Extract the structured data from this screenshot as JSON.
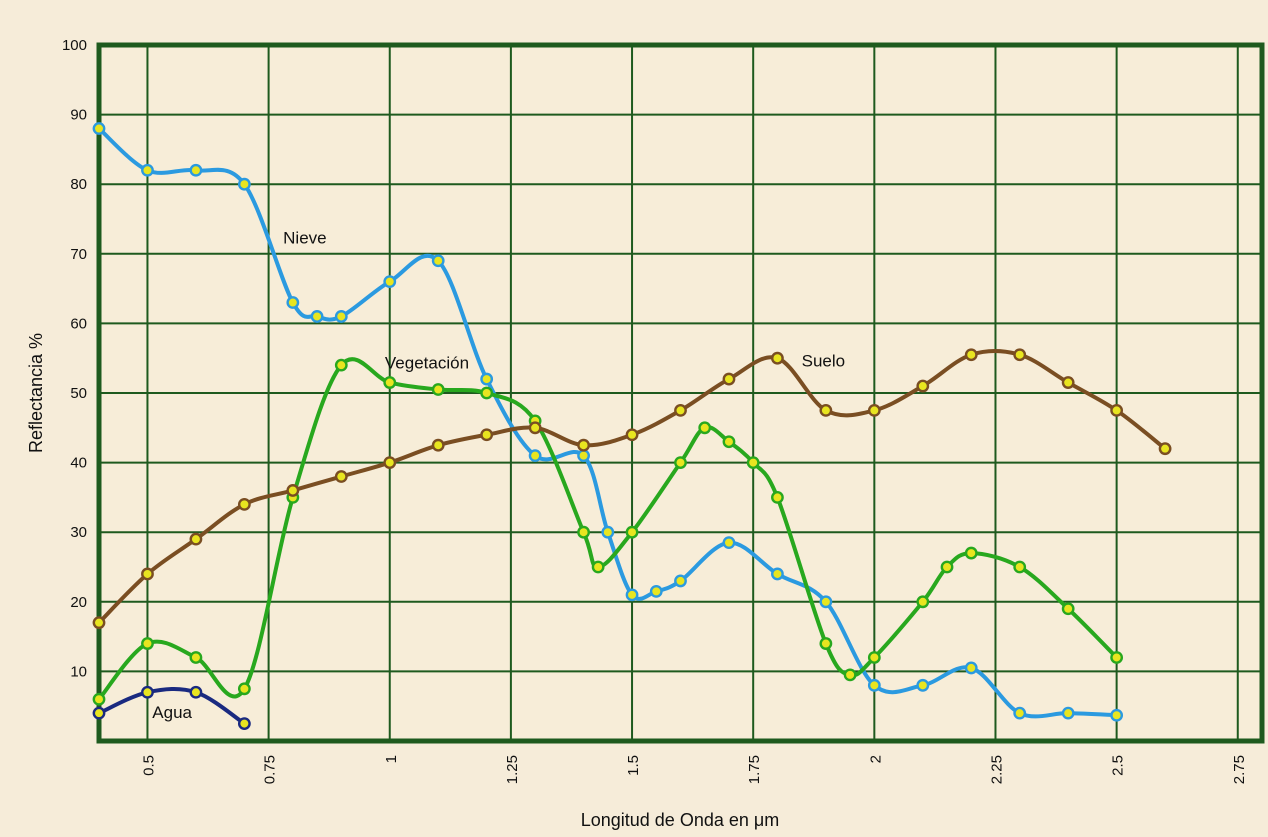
{
  "chart_data": {
    "type": "line",
    "title": "",
    "xlabel": "Longitud de Onda en μm",
    "ylabel": "Reflectancia %",
    "xlim": [
      0.4,
      2.8
    ],
    "ylim": [
      0,
      100
    ],
    "x_ticks": [
      "0.5",
      "0.75",
      "1",
      "1.25",
      "1.5",
      "1.75",
      "2",
      "2.25",
      "2.5",
      "2.75"
    ],
    "y_ticks": [
      "10",
      "20",
      "30",
      "40",
      "50",
      "60",
      "70",
      "80",
      "90",
      "100"
    ],
    "grid": true,
    "legend": "none (inline series labels)",
    "colors": {
      "background": "#f6ecd9",
      "plot_background": "#f7edd8",
      "grid": "#1e5a1e",
      "marker_fill": "#e8e520"
    },
    "series": [
      {
        "name": "Nieve",
        "color": "#2b9ae0",
        "x": [
          0.4,
          0.5,
          0.6,
          0.7,
          0.8,
          0.85,
          0.9,
          1.0,
          1.1,
          1.2,
          1.3,
          1.4,
          1.45,
          1.5,
          1.55,
          1.6,
          1.7,
          1.8,
          1.9,
          2.0,
          2.1,
          2.2,
          2.3,
          2.4,
          2.5
        ],
        "y": [
          88,
          82,
          82,
          80,
          63,
          61,
          61,
          66,
          69,
          52,
          41,
          41,
          30,
          21,
          21.5,
          23,
          28.5,
          24,
          20,
          8,
          8,
          10.5,
          4,
          4,
          3.7
        ]
      },
      {
        "name": "Vegetación",
        "color": "#28a81e",
        "x": [
          0.4,
          0.5,
          0.6,
          0.7,
          0.8,
          0.9,
          1.0,
          1.1,
          1.2,
          1.3,
          1.4,
          1.43,
          1.5,
          1.6,
          1.65,
          1.7,
          1.75,
          1.8,
          1.9,
          1.95,
          2.0,
          2.1,
          2.15,
          2.2,
          2.3,
          2.4,
          2.5
        ],
        "y": [
          6,
          14,
          12,
          7.5,
          35,
          54,
          51.5,
          50.5,
          50,
          46,
          30,
          25,
          30,
          40,
          45,
          43,
          40,
          35,
          14,
          9.5,
          12,
          20,
          25,
          27,
          25,
          19,
          12
        ]
      },
      {
        "name": "Suelo",
        "color": "#7a4e22",
        "x": [
          0.4,
          0.5,
          0.6,
          0.7,
          0.8,
          0.9,
          1.0,
          1.1,
          1.2,
          1.3,
          1.4,
          1.5,
          1.6,
          1.7,
          1.8,
          1.9,
          2.0,
          2.1,
          2.2,
          2.3,
          2.4,
          2.5,
          2.6
        ],
        "y": [
          17,
          24,
          29,
          34,
          36,
          38,
          40,
          42.5,
          44,
          45,
          42.5,
          44,
          47.5,
          52,
          55,
          47.5,
          47.5,
          51,
          55.5,
          55.5,
          51.5,
          47.5,
          42
        ]
      },
      {
        "name": "Agua",
        "color": "#1a2a80",
        "x": [
          0.4,
          0.5,
          0.6,
          0.7
        ],
        "y": [
          4,
          7,
          7,
          2.5
        ]
      }
    ]
  }
}
